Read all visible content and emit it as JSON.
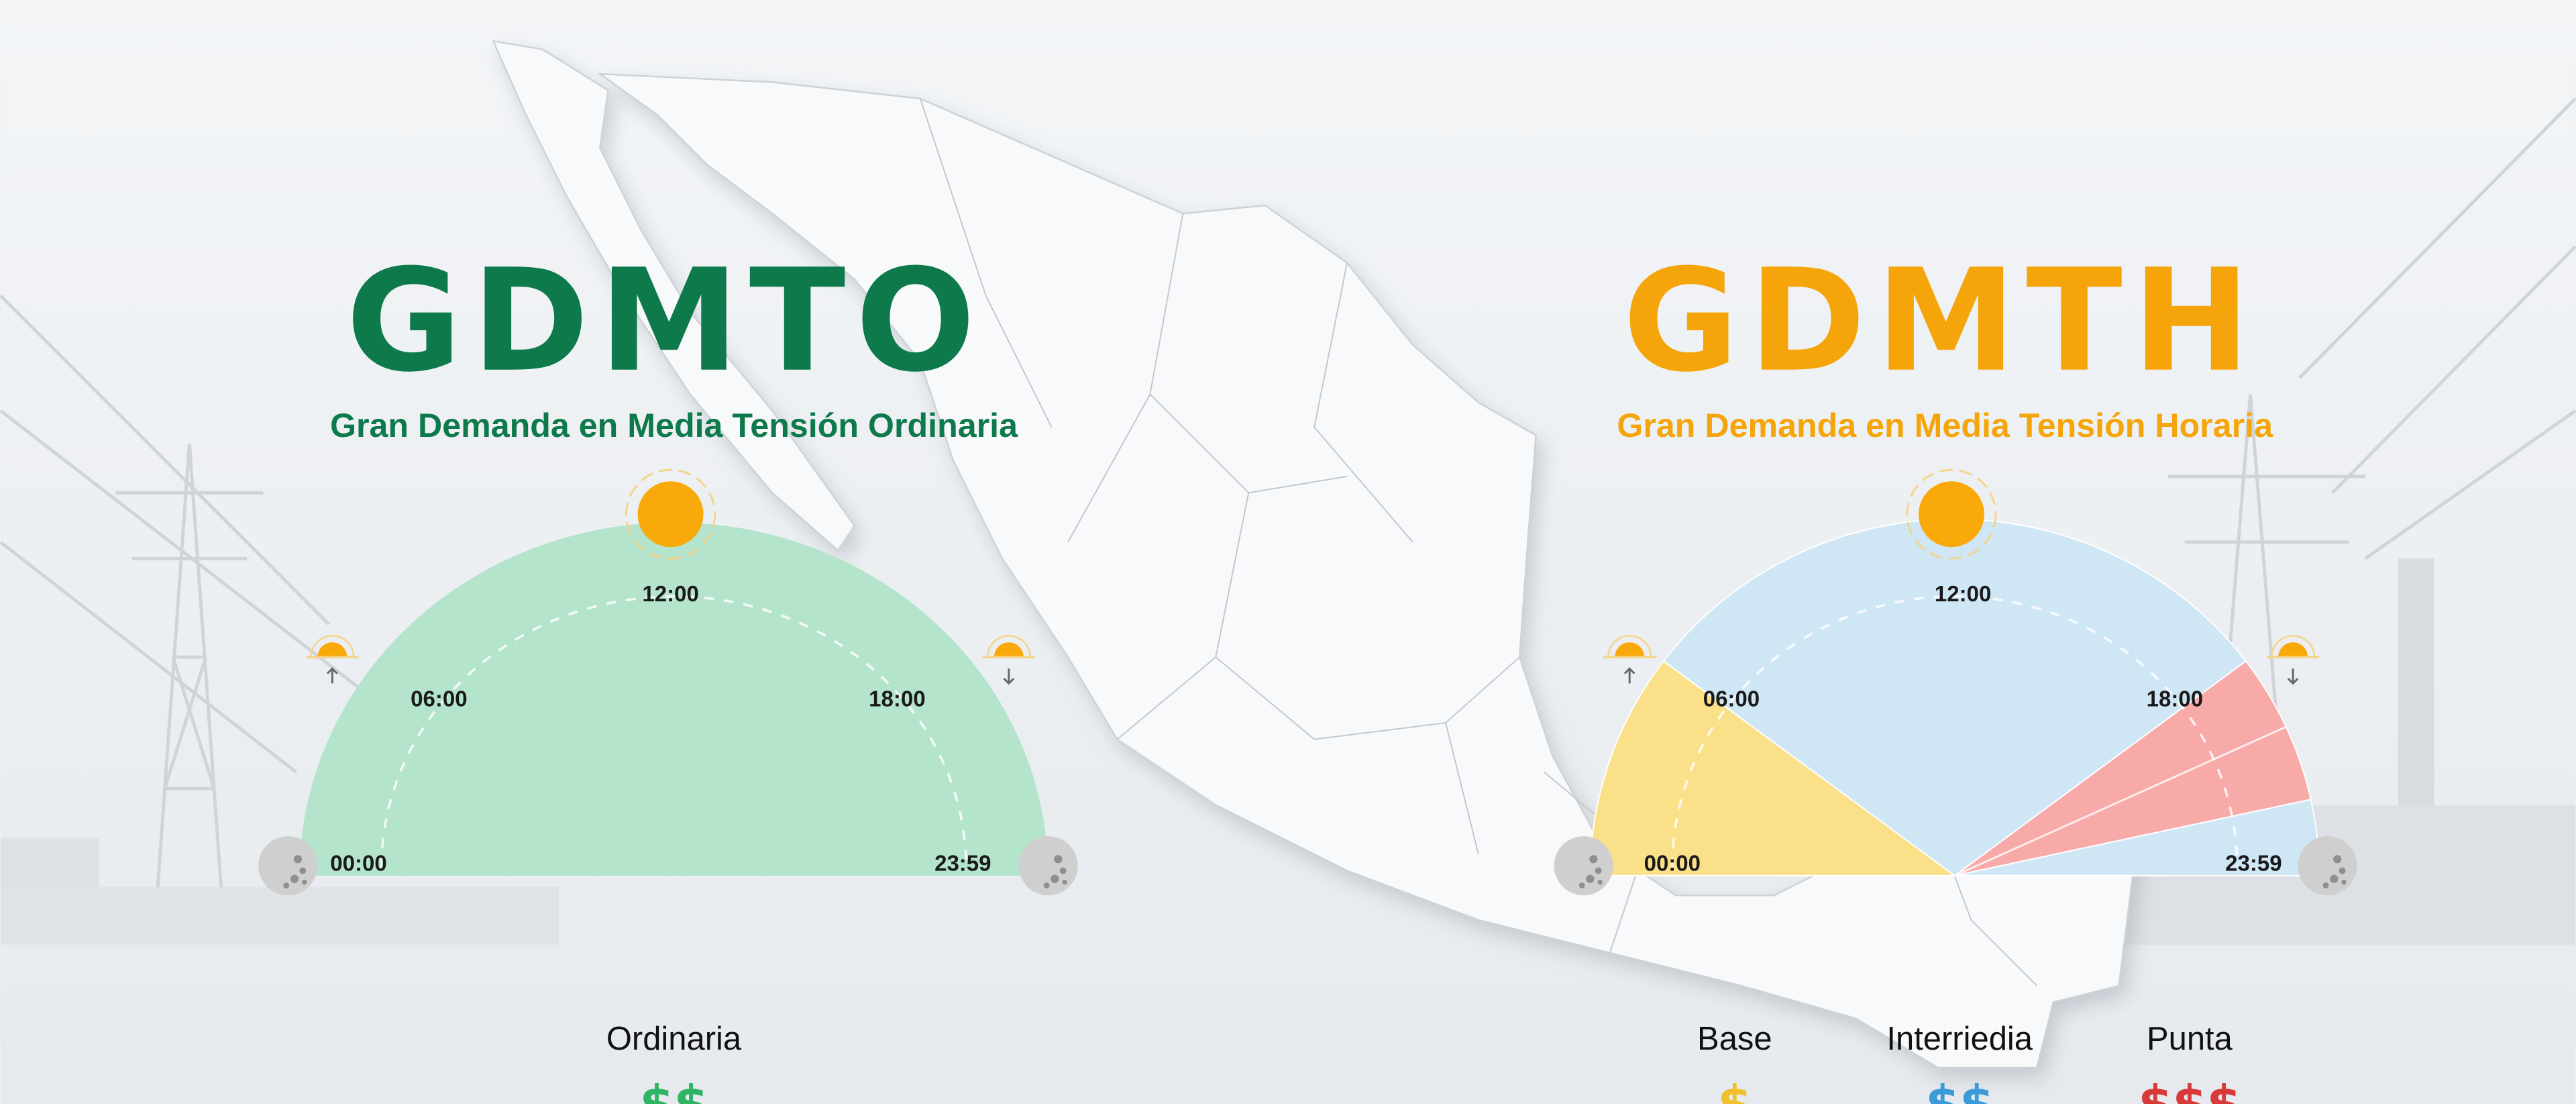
{
  "colors": {
    "gdmto": "#0e7a4c",
    "gdmth": "#f5a50a",
    "ordinaria": "#b4e4cc",
    "base": "#fbe08a",
    "intermedia": "#cfe6f5",
    "punta": "#f7aaa8",
    "sun": "#f9a90a"
  },
  "gdmto": {
    "title": "GDMTO",
    "subtitle": "Gran Demanda en Media Tensión Ordinaria",
    "times": {
      "t0000": "00:00",
      "t0600": "06:00",
      "t1200": "12:00",
      "t1800": "18:00",
      "t2359": "23:59"
    },
    "legend": [
      {
        "label": "Ordinaria",
        "price": "$$",
        "color": "#2fb463"
      }
    ]
  },
  "gdmth": {
    "title": "GDMTH",
    "subtitle": "Gran Demanda en Media Tensión Horaria",
    "times": {
      "t0000": "00:00",
      "t0600": "06:00",
      "t1200": "12:00",
      "t1800": "18:00",
      "t2359": "23:59"
    },
    "segments": [
      {
        "period": "base",
        "from": 0,
        "to": 6
      },
      {
        "period": "intermedia",
        "from": 6,
        "to": 18
      },
      {
        "period": "punta",
        "from": 18,
        "to": 22
      },
      {
        "period": "intermedia",
        "from": 22,
        "to": 24
      }
    ],
    "legend": [
      {
        "label": "Base",
        "price": "$",
        "color": "#f0c12c"
      },
      {
        "label": "Interriedia",
        "price": "$$",
        "color": "#3b9ad8"
      },
      {
        "label": "Punta",
        "price": "$$$",
        "color": "#d83a3a"
      }
    ]
  },
  "icons": [
    "sun-icon",
    "sunrise-icon",
    "sunset-icon",
    "moon-icon",
    "transmission-tower-icon",
    "mexico-map"
  ]
}
